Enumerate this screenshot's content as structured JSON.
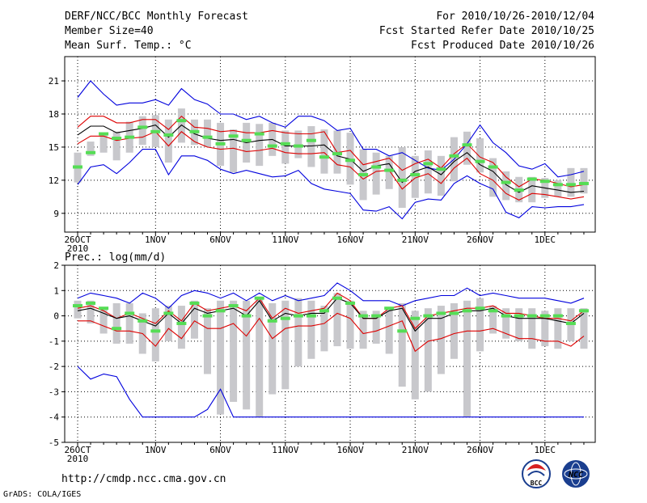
{
  "header": {
    "title": "DERF/NCC/BCC Monthly Forecast",
    "member_size": "Member Size=40",
    "variable": "Mean Surf. Temp.: °C",
    "period": "For 2010/10/26-2010/12/04",
    "fcst_started": "Fcst Started Refer Date 2010/10/25",
    "fcst_produced": "Fcst Produced Date 2010/10/26"
  },
  "footer": {
    "url": "http://cmdp.ncc.cma.gov.cn",
    "grads": "GrADS: COLA/IGES",
    "logo_left": "BCC",
    "logo_right": "NCC"
  },
  "colors": {
    "envelope": "#0000dd",
    "spread": "#dd0000",
    "mean": "#000000",
    "bar": "#c8c8cc",
    "marker": "#55dd55"
  },
  "chart_data": [
    {
      "type": "line",
      "id": "temperature",
      "title": "Mean Surf. Temp.: °C",
      "x": [
        0,
        1,
        2,
        3,
        4,
        5,
        6,
        7,
        8,
        9,
        10,
        11,
        12,
        13,
        14,
        15,
        16,
        17,
        18,
        19,
        20,
        21,
        22,
        23,
        24,
        25,
        26,
        27,
        28,
        29,
        30,
        31,
        32,
        33,
        34,
        35,
        36,
        37,
        38,
        39
      ],
      "ylim": [
        7.3,
        23.2
      ],
      "yticks": [
        "9",
        "12",
        "15",
        "18",
        "21"
      ],
      "ytick_values": [
        9,
        12,
        15,
        18,
        21
      ],
      "xtick_labels": [
        "26OCT",
        "1NOV",
        "6NOV",
        "11NOV",
        "16NOV",
        "21NOV",
        "26NOV",
        "1DEC"
      ],
      "xtick_values": [
        0,
        6,
        11,
        16,
        21,
        26,
        31,
        36
      ],
      "xtick_year": "2010",
      "series": [
        {
          "name": "max",
          "values": [
            19.5,
            21,
            19.8,
            18.8,
            19,
            19,
            19.3,
            18.8,
            20.3,
            19.3,
            18.9,
            18,
            18,
            17.5,
            17.8,
            17.2,
            16.8,
            17.8,
            17.8,
            17.4,
            16.5,
            16.7,
            14.8,
            14.8,
            14.2,
            14.5,
            13.8,
            13.1,
            12.9,
            13.9,
            15.3,
            17,
            15.4,
            14.5,
            13.3,
            13,
            13.5,
            12.3,
            12.5,
            12.8
          ]
        },
        {
          "name": "upper",
          "values": [
            16.8,
            17.8,
            17.8,
            17.2,
            17.2,
            17.5,
            17.5,
            16.6,
            17.8,
            16.8,
            16.7,
            16.4,
            16.5,
            16.3,
            16.3,
            16.5,
            16.3,
            16.2,
            16.2,
            16.4,
            14.5,
            14.7,
            13.4,
            13.7,
            14,
            12.9,
            13.5,
            13.9,
            13.1,
            14.4,
            15.3,
            14.1,
            13.6,
            12.3,
            11.4,
            12.1,
            12,
            11.7,
            11.4,
            11.6
          ]
        },
        {
          "name": "mean",
          "values": [
            16.1,
            16.9,
            16.9,
            16.3,
            16.5,
            16.7,
            17,
            15.9,
            17,
            16.2,
            15.8,
            15.6,
            15.7,
            15.4,
            15.6,
            15.7,
            15.1,
            15.1,
            15.1,
            15.2,
            14.2,
            13.9,
            12.8,
            13.3,
            13.5,
            11.8,
            12.8,
            13.2,
            12.5,
            13.7,
            14.5,
            13.4,
            12.8,
            11.6,
            10.9,
            11.5,
            11.3,
            11.1,
            10.9,
            11
          ]
        },
        {
          "name": "lower",
          "values": [
            15.3,
            16,
            16,
            15.6,
            15.8,
            15.9,
            16.4,
            15.1,
            16.4,
            15.5,
            15,
            14.8,
            14.9,
            14.6,
            14.7,
            14.9,
            14.5,
            14.4,
            14.4,
            14.5,
            13.4,
            13.2,
            12.1,
            12.8,
            12.9,
            11.2,
            12.2,
            12.6,
            11.7,
            13.1,
            14,
            12.6,
            12,
            10.8,
            10.2,
            10.8,
            10.7,
            10.5,
            10.3,
            10.5
          ]
        },
        {
          "name": "min",
          "values": [
            11.6,
            13.2,
            13.4,
            12.6,
            13.6,
            14.8,
            14.8,
            12.5,
            14.2,
            14.2,
            13.8,
            13,
            12.6,
            12.9,
            12.6,
            12.3,
            12.4,
            12.9,
            11.7,
            11.2,
            11,
            10.8,
            9.3,
            9.2,
            9.6,
            8.5,
            10,
            10.3,
            10.2,
            11.7,
            12.4,
            11.7,
            11.2,
            9.1,
            8.6,
            9.6,
            9.5,
            9.6,
            9.6,
            9.8
          ]
        },
        {
          "name": "bar_top",
          "values": [
            14.5,
            15.5,
            16.3,
            16.4,
            17.3,
            17.8,
            17.9,
            17.5,
            18.5,
            17.5,
            17.5,
            17.2,
            16.6,
            17.2,
            17.1,
            17.2,
            16.5,
            16.5,
            16.9,
            16.6,
            16.5,
            16.3,
            14.8,
            14.5,
            14.2,
            15,
            14.2,
            14.7,
            14.2,
            15.9,
            16.4,
            15.8,
            14,
            12.8,
            12.3,
            12.3,
            12.2,
            12,
            13.1,
            13.1
          ]
        },
        {
          "name": "bar_bottom",
          "values": [
            11.8,
            14.2,
            14.5,
            13.8,
            14.5,
            15.2,
            15,
            13.6,
            15.4,
            15.2,
            15,
            13.3,
            12.7,
            13.6,
            13.3,
            14.2,
            13.5,
            14,
            13.2,
            12.6,
            12.6,
            11.6,
            10.2,
            10.7,
            11.2,
            9.5,
            10.4,
            10.8,
            10.6,
            11.9,
            13.4,
            12.7,
            10.5,
            10.2,
            10,
            10,
            10.4,
            10.5,
            10.5,
            10.8
          ]
        },
        {
          "name": "marker",
          "values": [
            13.2,
            14.5,
            16.2,
            15.8,
            15.9,
            16.8,
            16.4,
            16.1,
            17.4,
            16.4,
            15.9,
            15.3,
            16.0,
            15.6,
            16.2,
            15.1,
            15.3,
            15.1,
            15.6,
            14.1,
            14.4,
            13.8,
            12.5,
            13.2,
            12.9,
            12.0,
            12.5,
            13.5,
            13.0,
            14.2,
            15.2,
            13.7,
            13.2,
            11.8,
            11.1,
            12.1,
            11.9,
            11.6,
            11.6,
            11.7
          ]
        }
      ]
    },
    {
      "type": "line",
      "id": "precipitation",
      "title": "Prec.: log(mm/d)",
      "x": [
        0,
        1,
        2,
        3,
        4,
        5,
        6,
        7,
        8,
        9,
        10,
        11,
        12,
        13,
        14,
        15,
        16,
        17,
        18,
        19,
        20,
        21,
        22,
        23,
        24,
        25,
        26,
        27,
        28,
        29,
        30,
        31,
        32,
        33,
        34,
        35,
        36,
        37,
        38,
        39
      ],
      "ylim": [
        -5,
        2
      ],
      "yticks": [
        "-5",
        "-4",
        "-3",
        "-2",
        "-1",
        "0",
        "1",
        "2"
      ],
      "ytick_values": [
        -5,
        -4,
        -3,
        -2,
        -1,
        0,
        1,
        2
      ],
      "xtick_labels": [
        "26OCT",
        "1NOV",
        "6NOV",
        "11NOV",
        "16NOV",
        "21NOV",
        "26NOV",
        "1DEC"
      ],
      "xtick_values": [
        0,
        6,
        11,
        16,
        21,
        26,
        31,
        36
      ],
      "xtick_year": "2010",
      "series": [
        {
          "name": "max",
          "values": [
            0.7,
            0.9,
            0.8,
            0.7,
            0.5,
            0.9,
            0.7,
            0.3,
            0.8,
            1.0,
            0.9,
            0.7,
            0.9,
            0.6,
            0.9,
            0.6,
            0.8,
            0.6,
            0.7,
            0.8,
            1.3,
            1.0,
            0.6,
            0.6,
            0.6,
            0.4,
            0.6,
            0.7,
            0.8,
            0.8,
            1.1,
            0.8,
            0.9,
            0.8,
            0.7,
            0.7,
            0.7,
            0.6,
            0.5,
            0.7
          ]
        },
        {
          "name": "upper",
          "values": [
            0.3,
            0.4,
            0.2,
            -0.1,
            0.1,
            -0.1,
            -0.3,
            0.2,
            -0.2,
            0.5,
            0.2,
            0.3,
            0.4,
            0.2,
            0.7,
            -0.1,
            0.3,
            0.1,
            0.2,
            0.3,
            0.9,
            0.6,
            -0.1,
            -0.1,
            0.3,
            0.4,
            -0.5,
            0.0,
            0.1,
            0.2,
            0.3,
            0.3,
            0.4,
            0.1,
            0.1,
            0.0,
            -0.1,
            -0.1,
            -0.2,
            0.2
          ]
        },
        {
          "name": "mean",
          "values": [
            0.2,
            0.3,
            0.1,
            -0.1,
            0.0,
            -0.2,
            -0.4,
            0.1,
            -0.3,
            0.3,
            0.1,
            0.2,
            0.3,
            0.0,
            0.6,
            -0.2,
            0.1,
            0.0,
            0.1,
            0.1,
            0.7,
            0.5,
            -0.1,
            -0.1,
            0.2,
            0.3,
            -0.6,
            -0.1,
            -0.1,
            0.1,
            0.2,
            0.2,
            0.3,
            0.0,
            -0.1,
            -0.1,
            -0.1,
            -0.2,
            -0.3,
            0.1
          ]
        },
        {
          "name": "lower",
          "values": [
            -0.2,
            -0.2,
            -0.4,
            -0.6,
            -0.6,
            -0.7,
            -1.2,
            -0.5,
            -0.9,
            -0.2,
            -0.5,
            -0.5,
            -0.3,
            -0.8,
            -0.1,
            -0.9,
            -0.5,
            -0.4,
            -0.4,
            -0.3,
            0.1,
            -0.1,
            -0.7,
            -0.6,
            -0.4,
            -0.2,
            -1.4,
            -1.0,
            -0.9,
            -0.7,
            -0.6,
            -0.6,
            -0.5,
            -0.7,
            -0.9,
            -0.9,
            -1.0,
            -1.0,
            -1.2,
            -0.8
          ]
        },
        {
          "name": "min",
          "values": [
            -2.0,
            -2.5,
            -2.3,
            -2.4,
            -3.3,
            -4.0,
            -4.0,
            -4.0,
            -4.0,
            -4.0,
            -3.7,
            -2.9,
            -4.0,
            -4.0,
            -4.0,
            -4.0,
            -4.0,
            -4.0,
            -4.0,
            -4.0,
            -4.0,
            -4.0,
            -4.0,
            -4.0,
            -4.0,
            -4.0,
            -4.0,
            -4.0,
            -4.0,
            -4.0,
            -4.0,
            -4.0,
            -4.0,
            -4.0,
            -4.0,
            -4.0,
            -4.0,
            -4.0,
            -4.0,
            -4.0
          ]
        },
        {
          "name": "bar_top",
          "values": [
            0.6,
            0.6,
            0.3,
            0.5,
            0.5,
            0.1,
            0.3,
            0.4,
            0.4,
            0.6,
            0.3,
            0.6,
            0.6,
            0.6,
            0.7,
            0.5,
            0.6,
            0.7,
            0.6,
            0.4,
            0.9,
            0.6,
            0.2,
            0.2,
            0.3,
            0.5,
            0.2,
            0.3,
            0.4,
            0.5,
            0.6,
            0.7,
            0.4,
            0.3,
            0.3,
            0.3,
            0.2,
            0.3,
            0.3,
            0.3
          ]
        },
        {
          "name": "bar_bottom",
          "values": [
            -0.1,
            -0.3,
            -0.7,
            -1.1,
            -1.1,
            -1.5,
            -1.8,
            -1.0,
            -1.3,
            -0.9,
            -2.3,
            -3.9,
            -3.4,
            -3.7,
            -4.0,
            -3.1,
            -2.9,
            -2.0,
            -1.7,
            -1.4,
            -1.2,
            -1.3,
            -1.3,
            -1.1,
            -1.5,
            -2.8,
            -3.3,
            -3.0,
            -2.3,
            -1.7,
            -4.0,
            -1.4,
            -0.7,
            -0.9,
            -1.0,
            -1.3,
            -1.2,
            -1.3,
            -1.0,
            -1.3
          ]
        },
        {
          "name": "marker",
          "values": [
            0.4,
            0.5,
            0.3,
            -0.5,
            0.1,
            -0.2,
            -0.6,
            0.1,
            -0.3,
            0.5,
            0.0,
            0.2,
            0.4,
            0.0,
            0.7,
            -0.2,
            -0.1,
            0.0,
            0.0,
            0.2,
            0.7,
            0.5,
            0.0,
            0.0,
            0.3,
            -0.6,
            -0.1,
            0.0,
            0.1,
            0.1,
            0.2,
            0.3,
            0.2,
            0.0,
            0.0,
            0.0,
            0.0,
            0.0,
            -0.3,
            0.2
          ]
        }
      ]
    }
  ]
}
